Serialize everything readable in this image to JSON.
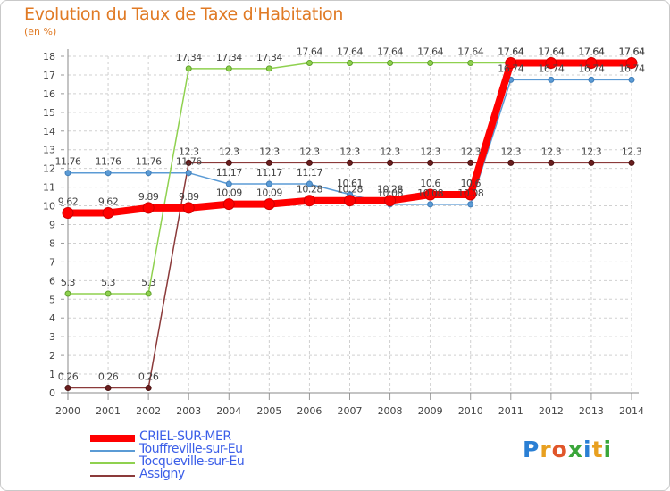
{
  "title": "Evolution du Taux de Taxe d'Habitation",
  "unit": "(en %)",
  "logo": {
    "letters": [
      "P",
      "r",
      "o",
      "x",
      "i",
      "t",
      "i"
    ],
    "colors": [
      "#2a7fd4",
      "#e8a020",
      "#e0562a",
      "#3aa63a",
      "#2a7fd4",
      "#e8a020",
      "#3aa63a"
    ]
  },
  "chart_data": {
    "type": "line",
    "x": [
      "2000",
      "2001",
      "2002",
      "2003",
      "2004",
      "2005",
      "2006",
      "2007",
      "2008",
      "2009",
      "2010",
      "2011",
      "2012",
      "2013",
      "2014"
    ],
    "ylim": [
      0,
      18
    ],
    "yticks": [
      0,
      1,
      2,
      3,
      4,
      5,
      6,
      7,
      8,
      9,
      10,
      11,
      12,
      13,
      14,
      15,
      16,
      17,
      18
    ],
    "grid": true,
    "legend_position": "bottom-left",
    "series": [
      {
        "name": "CRIEL-SUR-MER",
        "color": "#ff0000",
        "values": [
          9.62,
          9.62,
          9.89,
          9.89,
          10.09,
          10.09,
          10.28,
          10.28,
          10.28,
          10.6,
          10.6,
          17.64,
          17.64,
          17.64,
          17.64
        ],
        "labels": [
          "9.62",
          "9.62",
          "9.89",
          "9.89",
          "10.09",
          "10.09",
          "10.28",
          "10.28",
          "10.28",
          "10.6",
          "10.6",
          "17.64",
          "17.64",
          "17.64",
          "17.64"
        ]
      },
      {
        "name": "Touffreville-sur-Eu",
        "color": "#5b9bd5",
        "values": [
          11.76,
          11.76,
          11.76,
          11.76,
          11.17,
          11.17,
          11.17,
          10.61,
          10.08,
          10.08,
          10.08,
          16.74,
          16.74,
          16.74,
          16.74
        ],
        "labels": [
          "11.76",
          "11.76",
          "11.76",
          "11.76",
          "11.17",
          "11.17",
          "11.17",
          "10.61",
          "10.08",
          "10.08",
          "10.08",
          "16.74",
          "16.74",
          "16.74",
          "16.74"
        ]
      },
      {
        "name": "Tocqueville-sur-Eu",
        "color": "#8fd14f",
        "values": [
          5.3,
          5.3,
          5.3,
          17.34,
          17.34,
          17.34,
          17.64,
          17.64,
          17.64,
          17.64,
          17.64,
          17.64,
          17.64,
          17.64,
          17.64
        ],
        "labels": [
          "5.3",
          "5.3",
          "5.3",
          "17.34",
          "17.34",
          "17.34",
          "17.64",
          "17.64",
          "17.64",
          "17.64",
          "17.64",
          "17.64",
          "17.64",
          "17.64",
          "17.64"
        ]
      },
      {
        "name": "Assigny",
        "color": "#8b3a3a",
        "values": [
          0.26,
          0.26,
          0.26,
          12.3,
          12.3,
          12.3,
          12.3,
          12.3,
          12.3,
          12.3,
          12.3,
          12.3,
          12.3,
          12.3,
          12.3
        ],
        "labels": [
          "0.26",
          "0.26",
          "0.26",
          "12.3",
          "12.3",
          "12.3",
          "12.3",
          "12.3",
          "12.3",
          "12.3",
          "12.3",
          "12.3",
          "12.3",
          "12.3",
          "12.3"
        ]
      }
    ]
  }
}
